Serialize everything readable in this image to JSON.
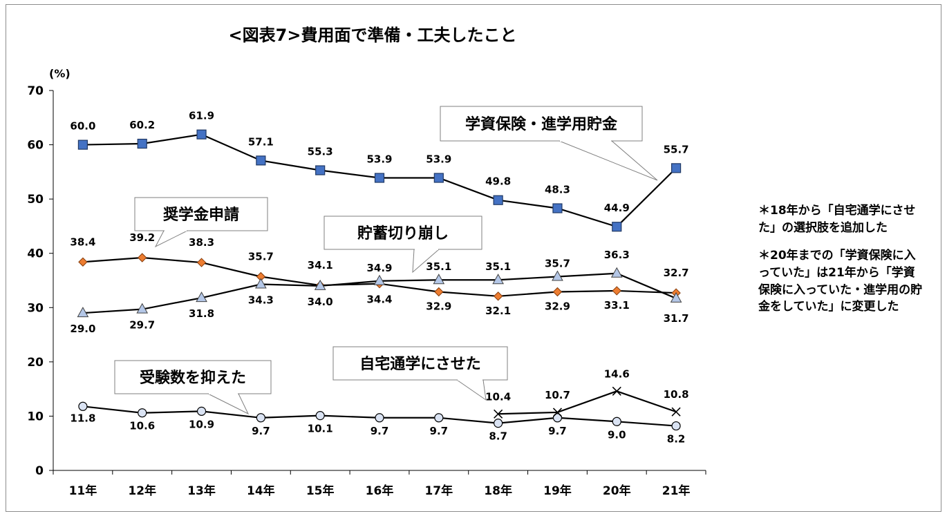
{
  "chart_data": {
    "type": "line",
    "title": "<図表7>費用面で準備・工夫したこと",
    "ylabel": "(%)",
    "ylim": [
      0,
      70
    ],
    "yticks": [
      0,
      10,
      20,
      30,
      40,
      50,
      60,
      70
    ],
    "categories": [
      "11年",
      "12年",
      "13年",
      "14年",
      "15年",
      "16年",
      "17年",
      "18年",
      "19年",
      "20年",
      "21年"
    ],
    "grid": false,
    "series": [
      {
        "key": "gakushi",
        "name": "学資保険・進学用貯金",
        "marker": "square",
        "color": "#4472c4",
        "values": [
          60.0,
          60.2,
          61.9,
          57.1,
          55.3,
          53.9,
          53.9,
          49.8,
          48.3,
          44.9,
          55.7
        ],
        "labels": [
          "60.0",
          "60.2",
          "61.9",
          "57.1",
          "55.3",
          "53.9",
          "53.9",
          "49.8",
          "48.3",
          "44.9",
          "55.7"
        ]
      },
      {
        "key": "shogaku",
        "name": "奨学金申請",
        "marker": "diamond",
        "color": "#ed7d31",
        "values": [
          38.4,
          39.2,
          38.3,
          35.7,
          34.1,
          34.4,
          32.9,
          32.1,
          32.9,
          33.1,
          32.7
        ],
        "labels": [
          "38.4",
          "39.2",
          "38.3",
          "35.7",
          "34.1",
          "34.4",
          "32.9",
          "32.1",
          "32.9",
          "33.1",
          "32.7"
        ]
      },
      {
        "key": "chochiku",
        "name": "貯蓄切り崩し",
        "marker": "triangle",
        "color": "#b4c7e7",
        "values": [
          29.0,
          29.7,
          31.8,
          34.3,
          34.0,
          34.9,
          35.1,
          35.1,
          35.7,
          36.3,
          31.7
        ],
        "labels": [
          "29.0",
          "29.7",
          "31.8",
          "34.3",
          "34.0",
          "34.9",
          "35.1",
          "35.1",
          "35.7",
          "36.3",
          "31.7"
        ]
      },
      {
        "key": "juken",
        "name": "受験数を抑えた",
        "marker": "circle",
        "color": "#dae3f3",
        "values": [
          11.8,
          10.6,
          10.9,
          9.7,
          10.1,
          9.7,
          9.7,
          8.7,
          9.7,
          9.0,
          8.2
        ],
        "labels": [
          "11.8",
          "10.6",
          "10.9",
          "9.7",
          "10.1",
          "9.7",
          "9.7",
          "8.7",
          "9.7",
          "9.0",
          "8.2"
        ]
      },
      {
        "key": "jitaku",
        "name": "自宅通学にさせた",
        "marker": "cross",
        "color": "#000000",
        "values": [
          null,
          null,
          null,
          null,
          null,
          null,
          null,
          10.4,
          10.7,
          14.6,
          10.8
        ],
        "labels": [
          null,
          null,
          null,
          null,
          null,
          null,
          null,
          "10.4",
          "10.7",
          "14.6",
          "10.8"
        ]
      }
    ]
  },
  "notes": [
    "＊18年から「自宅通学にさせた」の選択肢を追加した",
    "＊20年までの「学資保険に入っていた」は21年から「学資保険に入っていた・進学用の貯金をしていた」に変更した"
  ]
}
